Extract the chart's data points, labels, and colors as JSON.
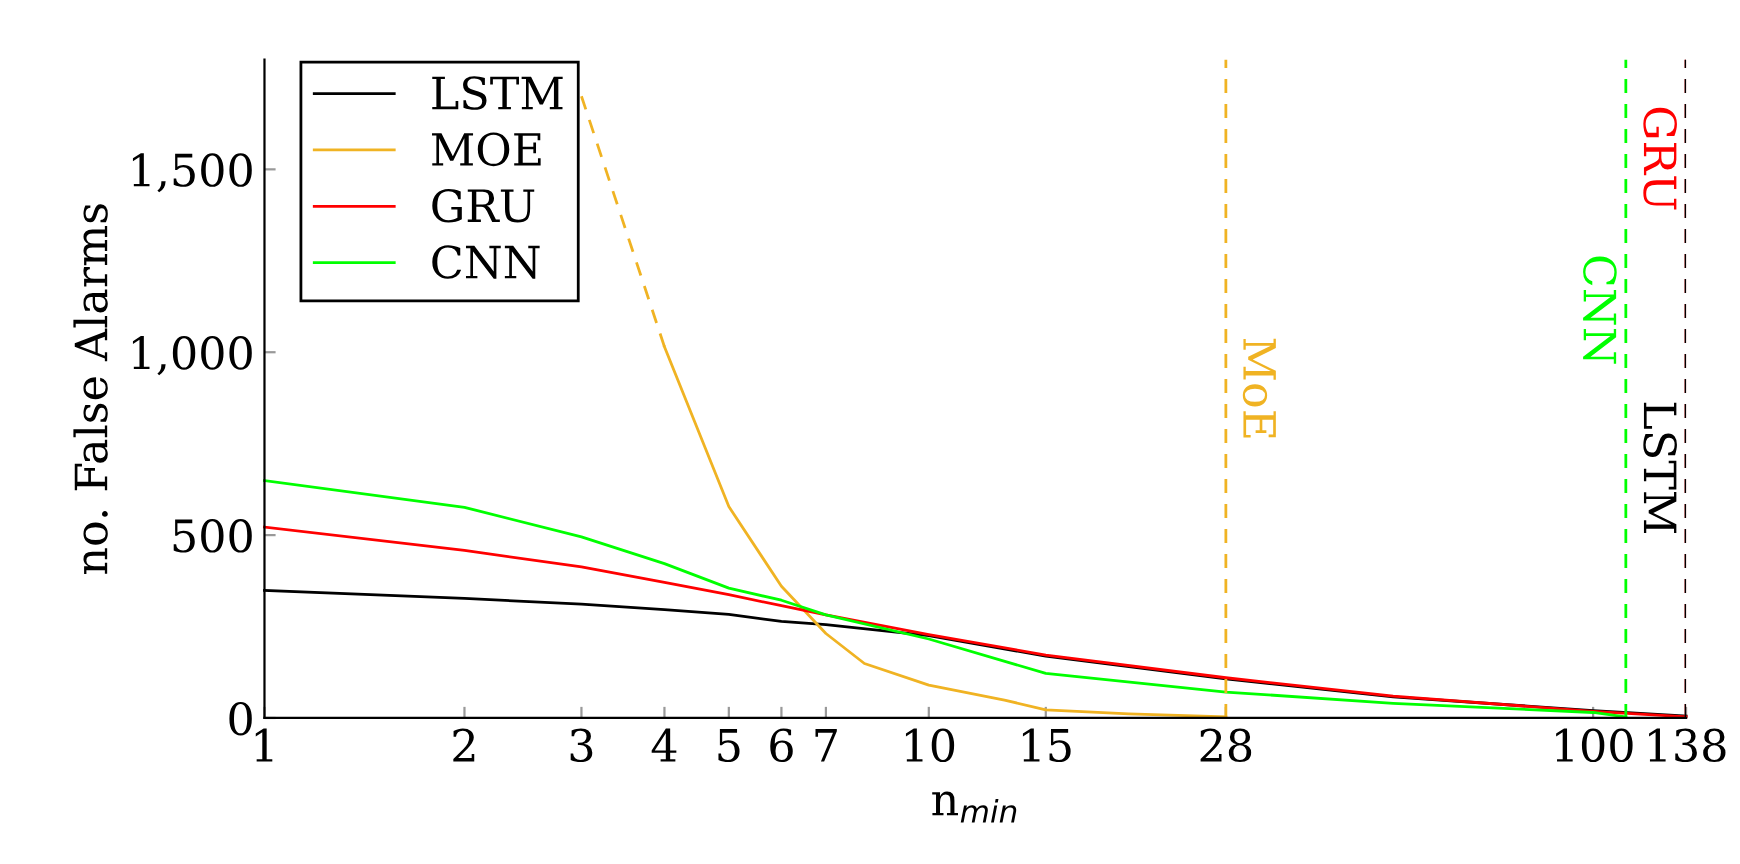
{
  "chart_data": {
    "type": "line",
    "xlabel": "n$_{min}$",
    "ylabel": "no. False Alarms",
    "log": "x",
    "xlim": [
      1,
      138
    ],
    "xticks": [
      1,
      2,
      3,
      4,
      5,
      6,
      7,
      10,
      15,
      28,
      100,
      138
    ],
    "ylim": [
      0,
      1800
    ],
    "yticks": [
      0,
      {
        "value": 500,
        "label": "500"
      },
      {
        "value": 1000,
        "label": "1,000"
      },
      {
        "value": 1500,
        "label": "1,500"
      }
    ],
    "grid": false,
    "legend": "top left",
    "marker": "none",
    "line_style": "solid",
    "series": [
      {
        "name": "LSTM",
        "color": "#000000",
        "x": [
          1,
          2,
          3,
          4,
          5,
          6,
          7,
          10,
          15,
          28,
          50,
          100,
          138
        ],
        "values": [
          349,
          327,
          311,
          296,
          283,
          264,
          255,
          225,
          169,
          107,
          58,
          20,
          5
        ]
      },
      {
        "name": "MOE",
        "color": "#f0b323",
        "x": [
          4,
          5,
          6,
          7,
          8,
          10,
          13,
          15,
          20,
          28
        ],
        "values": [
          1015,
          578,
          360,
          231,
          149,
          90,
          49,
          22,
          11,
          3
        ]
      },
      {
        "name": "GRU",
        "color": "#ff0000",
        "x": [
          1,
          2,
          3,
          4,
          5,
          6,
          7,
          10,
          15,
          28,
          50,
          100,
          138
        ],
        "values": [
          522,
          458,
          413,
          371,
          337,
          307,
          282,
          228,
          172,
          110,
          60,
          18,
          3
        ]
      },
      {
        "name": "CNN",
        "color": "#00ff00",
        "x": [
          1,
          2,
          3,
          4,
          5,
          6,
          7,
          10,
          15,
          28,
          50,
          100,
          112
        ],
        "values": [
          649,
          576,
          495,
          422,
          355,
          322,
          282,
          216,
          122,
          71,
          40,
          15,
          3
        ]
      },
      {
        "color": "#f0b323",
        "line_style": "dashed",
        "x": [
          3,
          4
        ],
        "values": [
          1700,
          1015
        ]
      }
    ],
    "ref_lines": [
      {
        "axis": "x",
        "value": 28,
        "label": "MoE",
        "color": "#f0b323",
        "line_style": "dashed"
      },
      {
        "axis": "x",
        "value": 112,
        "label": "CNN",
        "color": "#00ff00",
        "line_style": "dashed"
      },
      {
        "axis": "x",
        "value": 138,
        "label": "GRU",
        "color": "#ff0000",
        "line_style": "dashed"
      },
      {
        "axis": "x",
        "value": 138,
        "label": "LSTM",
        "color": "#000000",
        "line_style": "dashed"
      }
    ]
  }
}
